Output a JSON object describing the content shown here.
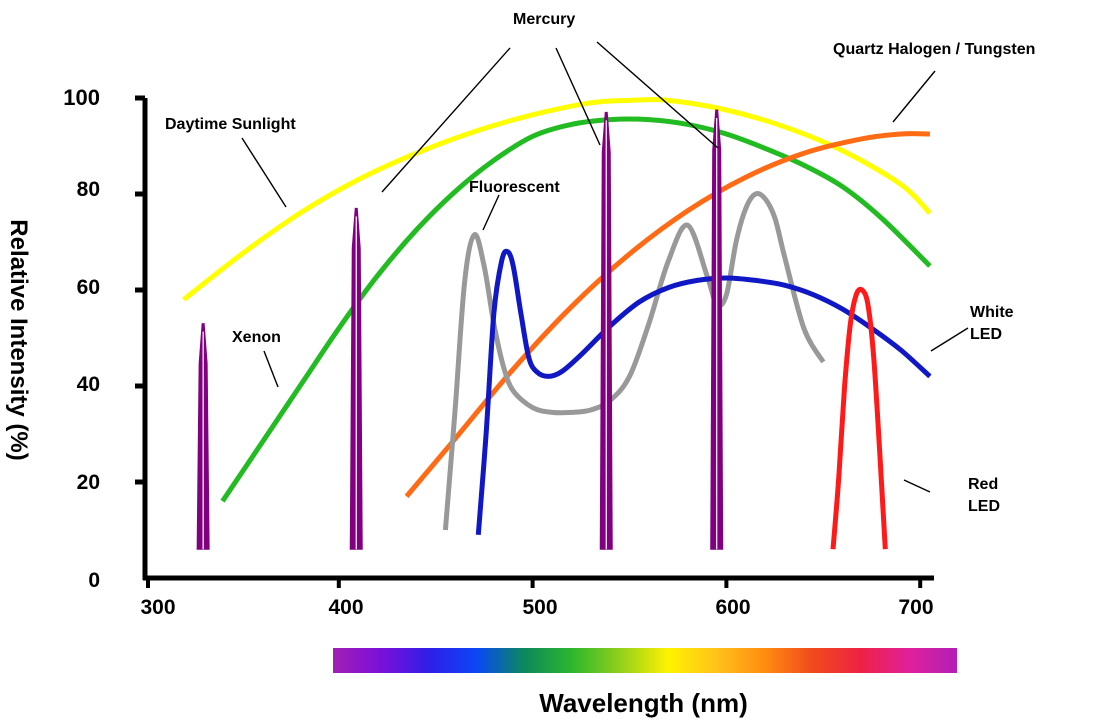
{
  "chart_data": {
    "type": "line",
    "title": "",
    "xlabel": "Wavelength (nm)",
    "ylabel": "Relative Intensity (%)",
    "xlim": [
      300,
      710
    ],
    "ylim": [
      0,
      100
    ],
    "x_ticks": [
      "300",
      "400",
      "500",
      "600",
      "700"
    ],
    "y_ticks": [
      "0",
      "20",
      "40",
      "60",
      "80",
      "100"
    ],
    "grid": false,
    "legend": "none (inline annotations)",
    "spectrum_bar": {
      "x_range": [
        400,
        710
      ],
      "colors": [
        "#a21fb5",
        "#7a10d8",
        "#2f1ee8",
        "#0a48f5",
        "#0b8a5a",
        "#2fb82c",
        "#93d11a",
        "#fff200",
        "#ffc21a",
        "#ff8c10",
        "#f04a1c",
        "#ee2244",
        "#e0209a",
        "#b21fb7"
      ]
    },
    "series": [
      {
        "name": "Daytime Sunlight",
        "color": "#ffff00",
        "x": [
          320,
          350,
          380,
          410,
          440,
          470,
          500,
          530,
          550,
          570,
          600,
          630,
          660,
          690,
          705
        ],
        "y": [
          58,
          67.5,
          76,
          83,
          88.5,
          93,
          96.5,
          99,
          99.5,
          99.5,
          97.5,
          94,
          89,
          82,
          76
        ]
      },
      {
        "name": "Xenon",
        "color": "#22bb22",
        "x": [
          340,
          360,
          380,
          400,
          420,
          440,
          460,
          480,
          500,
          520,
          540,
          560,
          580,
          600,
          620,
          640,
          660,
          680,
          705
        ],
        "y": [
          16,
          28,
          40,
          52,
          63,
          72.5,
          80.5,
          87,
          92,
          94.5,
          95.5,
          95.5,
          94.5,
          92.5,
          89.5,
          86,
          81.5,
          75,
          65
        ]
      },
      {
        "name": "Quartz Halogen / Tungsten",
        "color": "#ff6a14",
        "x": [
          435,
          460,
          490,
          520,
          550,
          580,
          610,
          640,
          670,
          690,
          705
        ],
        "y": [
          17,
          29,
          43.5,
          56.5,
          67.5,
          76.5,
          83.5,
          88.5,
          91.5,
          92.5,
          92.5
        ]
      },
      {
        "name": "Fluorescent",
        "color": "#999999",
        "x": [
          455,
          460,
          465,
          470,
          475,
          480,
          485,
          490,
          500,
          510,
          520,
          530,
          540,
          550,
          560,
          570,
          580,
          590,
          595,
          600,
          605,
          610,
          615,
          620,
          625,
          630,
          640,
          650
        ],
        "y": [
          10,
          35,
          62,
          71.5,
          65,
          53,
          44,
          39,
          35.5,
          34.5,
          34.5,
          35,
          37,
          42,
          53,
          66,
          73.5,
          63,
          57,
          59,
          70,
          77,
          80,
          79,
          75,
          67,
          52,
          45
        ]
      },
      {
        "name": "White LED",
        "color": "#1018c6",
        "x": [
          472,
          476,
          480,
          484,
          487,
          490,
          494,
          498,
          502,
          508,
          515,
          525,
          540,
          555,
          570,
          585,
          600,
          615,
          630,
          645,
          660,
          675,
          690,
          705
        ],
        "y": [
          9,
          30,
          55,
          66,
          68,
          65,
          55,
          46,
          43,
          42,
          43,
          46.5,
          52.5,
          57.5,
          60.5,
          62,
          62.5,
          62,
          61,
          59,
          56,
          52,
          47.5,
          42
        ]
      },
      {
        "name": "Red LED",
        "color": "#ff1a1a",
        "x": [
          655,
          658,
          661,
          664,
          667,
          670,
          673,
          676,
          679,
          682
        ],
        "y": [
          6,
          21,
          40,
          53,
          59,
          60,
          57,
          46,
          27,
          6
        ]
      },
      {
        "name": "Mercury",
        "color": "#800080",
        "type": "spikes",
        "x": [
          330,
          409,
          538,
          595
        ],
        "y": [
          53,
          77,
          97,
          97.5
        ],
        "base": 6
      }
    ],
    "annotations": [
      {
        "text": "Mercury"
      },
      {
        "text": "Quartz Halogen / Tungsten"
      },
      {
        "text": "Daytime Sunlight"
      },
      {
        "text": "Fluorescent"
      },
      {
        "text": "Xenon"
      },
      {
        "text": "White LED"
      },
      {
        "text": "Red LED"
      }
    ]
  }
}
